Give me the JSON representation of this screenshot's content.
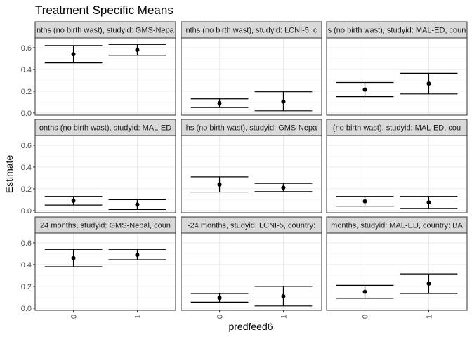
{
  "chart_data": {
    "type": "scatter",
    "title": "Treatment Specific Means",
    "xlabel": "predfeed6",
    "ylabel": "Estimate",
    "categories": [
      "0",
      "1"
    ],
    "ylim": [
      -0.02,
      0.69
    ],
    "y_ticks": [
      0.0,
      0.2,
      0.4,
      0.6
    ],
    "y_tick_labels": [
      "0.0",
      "0.2",
      "0.4",
      "0.6"
    ],
    "grid": true,
    "panels": [
      {
        "strip": "nths (no birth wast), studyid: GMS-Nepa",
        "points": [
          {
            "x": "0",
            "y": 0.54,
            "lower": 0.46,
            "upper": 0.62
          },
          {
            "x": "1",
            "y": 0.58,
            "lower": 0.53,
            "upper": 0.63
          }
        ]
      },
      {
        "strip": "nths (no birth wast), studyid: LCNI-5, c",
        "points": [
          {
            "x": "0",
            "y": 0.09,
            "lower": 0.05,
            "upper": 0.13
          },
          {
            "x": "1",
            "y": 0.105,
            "lower": 0.02,
            "upper": 0.195
          }
        ]
      },
      {
        "strip": "s (no birth wast), studyid: MAL-ED, coun",
        "points": [
          {
            "x": "0",
            "y": 0.215,
            "lower": 0.15,
            "upper": 0.28
          },
          {
            "x": "1",
            "y": 0.27,
            "lower": 0.175,
            "upper": 0.365
          }
        ]
      },
      {
        "strip": "onths (no birth wast), studyid: MAL-ED",
        "points": [
          {
            "x": "0",
            "y": 0.09,
            "lower": 0.05,
            "upper": 0.13
          },
          {
            "x": "1",
            "y": 0.055,
            "lower": 0.01,
            "upper": 0.1
          }
        ]
      },
      {
        "strip": "hs (no birth wast), studyid: GMS-Nepa",
        "points": [
          {
            "x": "0",
            "y": 0.24,
            "lower": 0.17,
            "upper": 0.31
          },
          {
            "x": "1",
            "y": 0.21,
            "lower": 0.175,
            "upper": 0.25
          }
        ]
      },
      {
        "strip": "(no birth wast), studyid: MAL-ED, cou",
        "points": [
          {
            "x": "0",
            "y": 0.085,
            "lower": 0.04,
            "upper": 0.13
          },
          {
            "x": "1",
            "y": 0.075,
            "lower": 0.02,
            "upper": 0.13
          }
        ]
      },
      {
        "strip": "24 months, studyid: GMS-Nepal, coun",
        "points": [
          {
            "x": "0",
            "y": 0.46,
            "lower": 0.38,
            "upper": 0.54
          },
          {
            "x": "1",
            "y": 0.49,
            "lower": 0.445,
            "upper": 0.54
          }
        ]
      },
      {
        "strip": "-24 months, studyid: LCNI-5, country:",
        "points": [
          {
            "x": "0",
            "y": 0.095,
            "lower": 0.055,
            "upper": 0.135
          },
          {
            "x": "1",
            "y": 0.11,
            "lower": 0.02,
            "upper": 0.2
          }
        ]
      },
      {
        "strip": "months, studyid: MAL-ED, country: BA",
        "points": [
          {
            "x": "0",
            "y": 0.15,
            "lower": 0.09,
            "upper": 0.21
          },
          {
            "x": "1",
            "y": 0.225,
            "lower": 0.135,
            "upper": 0.315
          }
        ]
      }
    ]
  }
}
